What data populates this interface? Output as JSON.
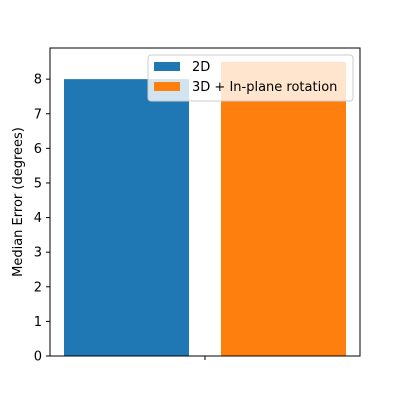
{
  "chart_data": {
    "type": "bar",
    "categories": [
      ""
    ],
    "series": [
      {
        "name": "2D",
        "values": [
          8.0
        ],
        "color": "#1f77b4"
      },
      {
        "name": "3D + In-plane rotation",
        "values": [
          8.5
        ],
        "color": "#ff7f0e"
      }
    ],
    "title": "",
    "xlabel": "",
    "ylabel": "Median Error (degrees)",
    "ylim": [
      0,
      8.9
    ],
    "yticks": [
      0,
      1,
      2,
      3,
      4,
      5,
      6,
      7,
      8
    ],
    "grid": false,
    "legend_placement": "upper right"
  }
}
